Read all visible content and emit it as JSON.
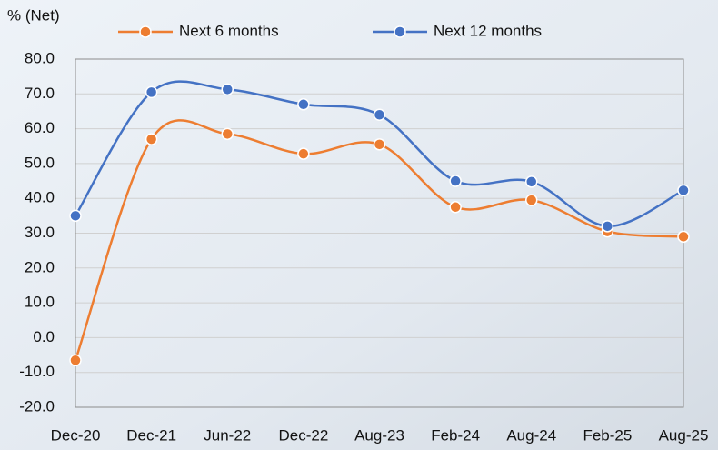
{
  "chart_data": {
    "type": "line",
    "y_label": "% (Net)",
    "categories": [
      "Dec-20",
      "Dec-21",
      "Jun-22",
      "Dec-22",
      "Aug-23",
      "Feb-24",
      "Aug-24",
      "Feb-25",
      "Aug-25"
    ],
    "series": [
      {
        "name": "Next 6 months",
        "color": "#ed7d31",
        "values": [
          -6.5,
          57,
          58.5,
          52.8,
          55.5,
          37.5,
          39.5,
          30.5,
          29
        ]
      },
      {
        "name": "Next 12 months",
        "color": "#4472c4",
        "values": [
          35,
          70.5,
          71.3,
          67,
          64,
          45,
          44.8,
          32,
          42.3
        ]
      }
    ],
    "ylim": [
      -20,
      80
    ],
    "yticks": [
      {
        "value": -20,
        "label": "-20.0"
      },
      {
        "value": -10,
        "label": "-10.0"
      },
      {
        "value": 0,
        "label": "0.0"
      },
      {
        "value": 10,
        "label": "10.0"
      },
      {
        "value": 20,
        "label": "20.0"
      },
      {
        "value": 30,
        "label": "30.0"
      },
      {
        "value": 40,
        "label": "40.0"
      },
      {
        "value": 50,
        "label": "50.0"
      },
      {
        "value": 60,
        "label": "60.0"
      },
      {
        "value": 70,
        "label": "70.0"
      },
      {
        "value": 80,
        "label": "80.0"
      }
    ],
    "grid": true,
    "smooth": true,
    "legend": "top"
  }
}
